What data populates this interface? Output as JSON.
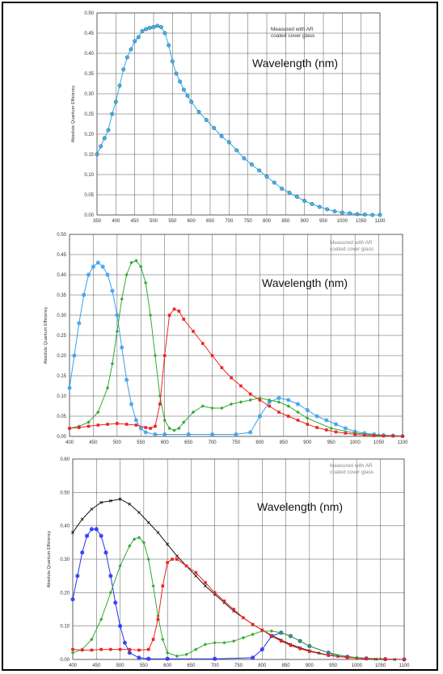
{
  "chart_data": [
    {
      "type": "line",
      "ylabel": "Absolute Quantum Efficiency",
      "xlabel": "",
      "annotation": [
        "Measured with AR",
        "coated cover glass"
      ],
      "wavelength_label": "Wavelength (nm)",
      "x_ticks": [
        "350",
        "400",
        "450",
        "500",
        "550",
        "600",
        "650",
        "700",
        "750",
        "800",
        "850",
        "900",
        "950",
        "1000",
        "1050",
        "1100"
      ],
      "y_ticks": [
        "0.00",
        "0.05",
        "0.10",
        "0.15",
        "0.20",
        "0.25",
        "0.30",
        "0.35",
        "0.40",
        "0.45",
        "0.50"
      ],
      "xlim": [
        350,
        1100
      ],
      "ylim": [
        0,
        0.5
      ],
      "grid": true,
      "series": [
        {
          "color": "#36a9e1",
          "marker": "circle",
          "x": [
            350,
            360,
            370,
            380,
            390,
            400,
            410,
            420,
            430,
            440,
            450,
            460,
            470,
            480,
            490,
            500,
            510,
            520,
            530,
            540,
            550,
            560,
            570,
            580,
            590,
            600,
            620,
            640,
            660,
            680,
            700,
            720,
            740,
            760,
            780,
            800,
            820,
            840,
            860,
            880,
            900,
            920,
            940,
            960,
            980,
            1000,
            1020,
            1040,
            1060,
            1080,
            1100
          ],
          "y": [
            0.15,
            0.17,
            0.19,
            0.21,
            0.25,
            0.28,
            0.32,
            0.36,
            0.39,
            0.41,
            0.43,
            0.44,
            0.455,
            0.46,
            0.463,
            0.465,
            0.468,
            0.465,
            0.45,
            0.42,
            0.38,
            0.35,
            0.33,
            0.31,
            0.295,
            0.28,
            0.255,
            0.235,
            0.215,
            0.195,
            0.18,
            0.16,
            0.14,
            0.125,
            0.11,
            0.095,
            0.08,
            0.065,
            0.055,
            0.045,
            0.035,
            0.027,
            0.02,
            0.014,
            0.009,
            0.006,
            0.004,
            0.002,
            0.001,
            0.0,
            0.0
          ]
        }
      ]
    },
    {
      "type": "line",
      "ylabel": "Absolute Quantum Efficiency",
      "xlabel": "",
      "annotation": [
        "Measured with AR",
        "coated cover glass"
      ],
      "wavelength_label": "Wavelength (nm)",
      "x_ticks": [
        "400",
        "450",
        "500",
        "550",
        "600",
        "650",
        "700",
        "750",
        "800",
        "850",
        "900",
        "950",
        "1000",
        "1050",
        "1100"
      ],
      "y_ticks": [
        "0.00",
        "0.05",
        "0.10",
        "0.15",
        "0.20",
        "0.25",
        "0.30",
        "0.35",
        "0.40",
        "0.45",
        "0.50"
      ],
      "xlim": [
        400,
        1100
      ],
      "ylim": [
        0,
        0.5
      ],
      "grid": true,
      "series": [
        {
          "color": "#3aa0ee",
          "marker": "circle",
          "x": [
            400,
            410,
            420,
            430,
            440,
            450,
            460,
            470,
            480,
            490,
            500,
            510,
            520,
            530,
            540,
            550,
            560,
            580,
            600,
            650,
            700,
            750,
            780,
            800,
            820,
            840,
            860,
            880,
            900,
            920,
            940,
            960,
            980,
            1000,
            1020,
            1040,
            1060,
            1080,
            1100
          ],
          "y": [
            0.12,
            0.2,
            0.28,
            0.35,
            0.4,
            0.42,
            0.43,
            0.42,
            0.4,
            0.36,
            0.3,
            0.22,
            0.14,
            0.08,
            0.04,
            0.02,
            0.01,
            0.005,
            0.005,
            0.005,
            0.005,
            0.005,
            0.01,
            0.05,
            0.085,
            0.095,
            0.09,
            0.08,
            0.065,
            0.05,
            0.04,
            0.03,
            0.02,
            0.012,
            0.008,
            0.005,
            0.003,
            0.002,
            0.001
          ]
        },
        {
          "color": "#33aa33",
          "marker": "diamond",
          "x": [
            400,
            420,
            440,
            460,
            480,
            490,
            500,
            510,
            520,
            530,
            540,
            550,
            560,
            570,
            580,
            590,
            600,
            610,
            620,
            630,
            640,
            660,
            680,
            700,
            720,
            740,
            760,
            780,
            800,
            820,
            840,
            860,
            880,
            900,
            950,
            1000,
            1050,
            1100
          ],
          "y": [
            0.02,
            0.025,
            0.035,
            0.06,
            0.12,
            0.18,
            0.26,
            0.34,
            0.4,
            0.43,
            0.435,
            0.42,
            0.38,
            0.3,
            0.2,
            0.1,
            0.04,
            0.02,
            0.015,
            0.02,
            0.035,
            0.06,
            0.075,
            0.07,
            0.07,
            0.08,
            0.085,
            0.09,
            0.095,
            0.09,
            0.085,
            0.075,
            0.06,
            0.045,
            0.02,
            0.008,
            0.003,
            0.001
          ]
        },
        {
          "color": "#ee2222",
          "marker": "square",
          "x": [
            400,
            420,
            440,
            460,
            480,
            500,
            520,
            540,
            560,
            570,
            580,
            590,
            600,
            610,
            620,
            630,
            640,
            660,
            680,
            700,
            720,
            740,
            760,
            780,
            800,
            820,
            840,
            860,
            880,
            900,
            920,
            940,
            960,
            980,
            1000,
            1020,
            1040,
            1060,
            1080,
            1100
          ],
          "y": [
            0.02,
            0.022,
            0.025,
            0.028,
            0.03,
            0.032,
            0.03,
            0.028,
            0.022,
            0.02,
            0.025,
            0.08,
            0.2,
            0.3,
            0.315,
            0.31,
            0.29,
            0.26,
            0.23,
            0.2,
            0.17,
            0.145,
            0.125,
            0.105,
            0.09,
            0.075,
            0.06,
            0.05,
            0.04,
            0.03,
            0.022,
            0.016,
            0.011,
            0.008,
            0.005,
            0.003,
            0.002,
            0.001,
            0.001,
            0.0
          ]
        }
      ]
    },
    {
      "type": "line",
      "ylabel": "Absolute Quantum Efficiency",
      "xlabel": "",
      "annotation": [
        "Measured with AR",
        "coated cover glass"
      ],
      "wavelength_label": "Wavelength (nm)",
      "x_ticks": [
        "400",
        "450",
        "500",
        "550",
        "600",
        "650",
        "700",
        "750",
        "800",
        "850",
        "900",
        "950",
        "1000",
        "1050",
        "1100"
      ],
      "y_ticks": [
        "0.00",
        "0.10",
        "0.20",
        "0.30",
        "0.40",
        "0.50",
        "0.60"
      ],
      "xlim": [
        400,
        1100
      ],
      "ylim": [
        0,
        0.6
      ],
      "grid": true,
      "series": [
        {
          "color": "#111111",
          "marker": "x",
          "x": [
            400,
            420,
            440,
            460,
            480,
            500,
            520,
            540,
            560,
            580,
            600,
            620,
            640,
            660,
            680,
            700,
            720,
            740,
            760,
            780,
            800,
            820,
            840,
            860,
            880,
            900,
            920,
            940,
            960,
            980,
            1000,
            1020,
            1040,
            1060,
            1080,
            1100
          ],
          "y": [
            0.38,
            0.42,
            0.45,
            0.47,
            0.475,
            0.48,
            0.465,
            0.44,
            0.41,
            0.38,
            0.345,
            0.31,
            0.28,
            0.25,
            0.22,
            0.195,
            0.17,
            0.145,
            0.125,
            0.105,
            0.088,
            0.072,
            0.058,
            0.045,
            0.035,
            0.026,
            0.019,
            0.013,
            0.009,
            0.006,
            0.004,
            0.002,
            0.001,
            0.0,
            0.0,
            0.0
          ]
        },
        {
          "color": "#2233ee",
          "marker": "circle",
          "x": [
            400,
            410,
            420,
            430,
            440,
            450,
            460,
            470,
            480,
            490,
            500,
            510,
            520,
            540,
            560,
            600,
            700,
            780,
            800,
            820,
            840,
            860,
            880,
            900,
            940,
            980,
            1020,
            1060,
            1100
          ],
          "y": [
            0.18,
            0.25,
            0.32,
            0.37,
            0.39,
            0.39,
            0.37,
            0.32,
            0.25,
            0.17,
            0.1,
            0.05,
            0.02,
            0.005,
            0.002,
            0.002,
            0.002,
            0.005,
            0.03,
            0.07,
            0.08,
            0.07,
            0.055,
            0.04,
            0.02,
            0.008,
            0.003,
            0.001,
            0.0
          ]
        },
        {
          "color": "#33aa33",
          "marker": "diamond",
          "x": [
            400,
            420,
            440,
            460,
            480,
            500,
            520,
            530,
            540,
            550,
            560,
            570,
            580,
            590,
            600,
            620,
            640,
            660,
            680,
            700,
            720,
            740,
            760,
            780,
            800,
            820,
            840,
            860,
            880,
            900,
            950,
            1000,
            1050,
            1100
          ],
          "y": [
            0.02,
            0.03,
            0.06,
            0.12,
            0.2,
            0.28,
            0.34,
            0.36,
            0.365,
            0.35,
            0.3,
            0.22,
            0.13,
            0.06,
            0.02,
            0.01,
            0.015,
            0.03,
            0.045,
            0.05,
            0.05,
            0.055,
            0.065,
            0.075,
            0.085,
            0.085,
            0.08,
            0.07,
            0.055,
            0.04,
            0.015,
            0.005,
            0.002,
            0.0
          ]
        },
        {
          "color": "#ee2222",
          "marker": "square",
          "x": [
            400,
            420,
            440,
            460,
            480,
            500,
            520,
            540,
            560,
            570,
            580,
            590,
            600,
            610,
            620,
            640,
            660,
            680,
            700,
            720,
            740,
            760,
            780,
            800,
            820,
            840,
            860,
            880,
            900,
            940,
            980,
            1020,
            1060,
            1100
          ],
          "y": [
            0.03,
            0.028,
            0.028,
            0.03,
            0.03,
            0.03,
            0.03,
            0.028,
            0.03,
            0.06,
            0.12,
            0.22,
            0.29,
            0.3,
            0.3,
            0.28,
            0.26,
            0.23,
            0.2,
            0.175,
            0.15,
            0.125,
            0.105,
            0.088,
            0.07,
            0.055,
            0.042,
            0.032,
            0.024,
            0.012,
            0.006,
            0.002,
            0.001,
            0.0
          ]
        }
      ]
    }
  ]
}
